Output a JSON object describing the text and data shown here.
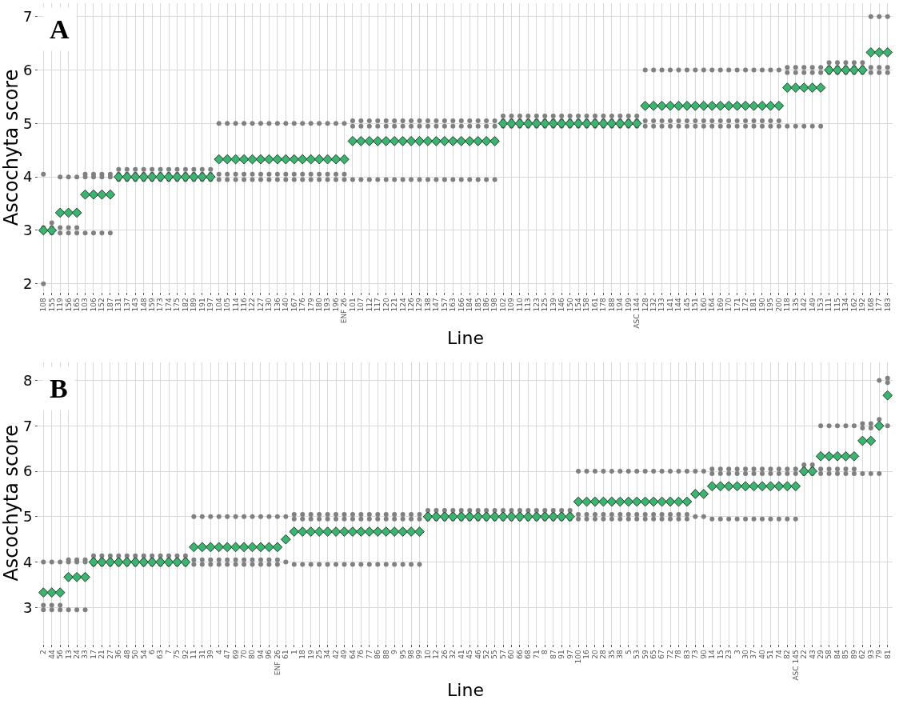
{
  "chart_data": [
    {
      "type": "scatter",
      "title": "A",
      "xlabel": "Line",
      "ylabel": "Ascochyta score",
      "grid": true,
      "ylim": [
        1.85,
        7.25
      ],
      "yticks": [
        2,
        3,
        4,
        5,
        6,
        7
      ],
      "categories": [
        "108",
        "155",
        "119",
        "156",
        "165",
        "103",
        "106",
        "152",
        "187",
        "131",
        "137",
        "143",
        "148",
        "159",
        "173",
        "174",
        "175",
        "182",
        "189",
        "191",
        "197",
        "104",
        "105",
        "114",
        "116",
        "122",
        "127",
        "130",
        "136",
        "140",
        "167",
        "176",
        "179",
        "180",
        "193",
        "196",
        "ENF 26",
        "101",
        "107",
        "112",
        "117",
        "120",
        "121",
        "124",
        "126",
        "129",
        "138",
        "147",
        "157",
        "163",
        "166",
        "184",
        "185",
        "186",
        "198",
        "102",
        "109",
        "110",
        "113",
        "123",
        "125",
        "139",
        "146",
        "150",
        "154",
        "158",
        "161",
        "178",
        "188",
        "194",
        "199",
        "ASC 144",
        "128",
        "132",
        "133",
        "141",
        "144",
        "145",
        "151",
        "160",
        "164",
        "169",
        "170",
        "171",
        "172",
        "181",
        "190",
        "195",
        "200",
        "118",
        "135",
        "142",
        "149",
        "153",
        "111",
        "115",
        "134",
        "162",
        "192",
        "168",
        "177",
        "183"
      ],
      "series": [
        {
          "color": "#808080",
          "marker": "circle",
          "values": [
            2.0,
            2.95,
            2.95,
            2.95,
            2.95,
            2.95,
            2.95,
            2.95,
            2.95,
            3.95,
            3.95,
            3.95,
            3.95,
            3.95,
            3.95,
            3.95,
            3.95,
            3.95,
            3.95,
            3.95,
            3.95,
            3.95,
            3.95,
            3.95,
            3.95,
            3.95,
            3.95,
            3.95,
            3.95,
            3.95,
            3.95,
            3.95,
            3.95,
            3.95,
            3.95,
            3.95,
            3.95,
            3.95,
            3.95,
            3.95,
            3.95,
            3.95,
            3.95,
            3.95,
            3.95,
            3.95,
            3.95,
            3.95,
            3.95,
            3.95,
            3.95,
            3.95,
            3.95,
            3.95,
            3.95,
            4.95,
            4.95,
            4.95,
            4.95,
            4.95,
            4.95,
            4.95,
            4.95,
            4.95,
            4.95,
            4.95,
            4.95,
            4.95,
            4.95,
            4.95,
            4.95,
            4.95,
            4.95,
            4.95,
            4.95,
            4.95,
            4.95,
            4.95,
            4.95,
            4.95,
            4.95,
            4.95,
            4.95,
            4.95,
            4.95,
            4.95,
            4.95,
            4.95,
            4.95,
            4.95,
            4.95,
            4.95,
            4.95,
            4.95,
            5.95,
            5.95,
            5.95,
            5.95,
            5.95,
            5.95,
            5.95,
            5.95
          ]
        },
        {
          "color": "#808080",
          "marker": "circle",
          "values": [
            3.05,
            3.14,
            3.05,
            3.05,
            3.05,
            4.0,
            4.0,
            4.0,
            4.0,
            4.14,
            4.14,
            4.14,
            4.14,
            4.14,
            4.14,
            4.14,
            4.14,
            4.14,
            4.14,
            4.14,
            4.14,
            4.05,
            4.05,
            4.05,
            4.05,
            4.05,
            4.05,
            4.05,
            4.05,
            4.05,
            4.05,
            4.05,
            4.05,
            4.05,
            4.05,
            4.05,
            4.05,
            4.95,
            4.95,
            4.95,
            4.95,
            4.95,
            4.95,
            4.95,
            4.95,
            4.95,
            4.95,
            4.95,
            4.95,
            4.95,
            4.95,
            4.95,
            4.95,
            4.95,
            4.95,
            5.14,
            5.14,
            5.14,
            5.14,
            5.14,
            5.14,
            5.14,
            5.14,
            5.14,
            5.14,
            5.14,
            5.14,
            5.14,
            5.14,
            5.14,
            5.14,
            5.14,
            5.05,
            5.05,
            5.05,
            5.05,
            5.05,
            5.05,
            5.05,
            5.05,
            5.05,
            5.05,
            5.05,
            5.05,
            5.05,
            5.05,
            5.05,
            5.05,
            5.05,
            5.95,
            5.95,
            5.95,
            5.95,
            5.95,
            6.14,
            6.14,
            6.14,
            6.14,
            6.14,
            6.05,
            6.05,
            6.05
          ]
        },
        {
          "color": "#808080",
          "marker": "circle",
          "values": [
            4.05,
            3.05,
            4.0,
            4.0,
            4.0,
            4.05,
            4.05,
            4.05,
            4.05,
            4.05,
            4.05,
            4.05,
            4.05,
            4.05,
            4.05,
            4.05,
            4.05,
            4.05,
            4.05,
            4.05,
            4.05,
            5.0,
            5.0,
            5.0,
            5.0,
            5.0,
            5.0,
            5.0,
            5.0,
            5.0,
            5.0,
            5.0,
            5.0,
            5.0,
            5.0,
            5.0,
            5.0,
            5.05,
            5.05,
            5.05,
            5.05,
            5.05,
            5.05,
            5.05,
            5.05,
            5.05,
            5.05,
            5.05,
            5.05,
            5.05,
            5.05,
            5.05,
            5.05,
            5.05,
            5.05,
            5.05,
            5.05,
            5.05,
            5.05,
            5.05,
            5.05,
            5.05,
            5.05,
            5.05,
            5.05,
            5.05,
            5.05,
            5.05,
            5.05,
            5.05,
            5.05,
            5.05,
            6.0,
            6.0,
            6.0,
            6.0,
            6.0,
            6.0,
            6.0,
            6.0,
            6.0,
            6.0,
            6.0,
            6.0,
            6.0,
            6.0,
            6.0,
            6.0,
            6.0,
            6.05,
            6.05,
            6.05,
            6.05,
            6.05,
            6.05,
            6.05,
            6.05,
            6.05,
            6.05,
            7.0,
            7.0,
            7.0
          ]
        },
        {
          "color": "#3cb371",
          "marker": "diamond",
          "values": [
            3.0,
            3.0,
            3.33,
            3.33,
            3.33,
            3.67,
            3.67,
            3.67,
            3.67,
            4.0,
            4.0,
            4.0,
            4.0,
            4.0,
            4.0,
            4.0,
            4.0,
            4.0,
            4.0,
            4.0,
            4.0,
            4.33,
            4.33,
            4.33,
            4.33,
            4.33,
            4.33,
            4.33,
            4.33,
            4.33,
            4.33,
            4.33,
            4.33,
            4.33,
            4.33,
            4.33,
            4.33,
            4.67,
            4.67,
            4.67,
            4.67,
            4.67,
            4.67,
            4.67,
            4.67,
            4.67,
            4.67,
            4.67,
            4.67,
            4.67,
            4.67,
            4.67,
            4.67,
            4.67,
            4.67,
            5.0,
            5.0,
            5.0,
            5.0,
            5.0,
            5.0,
            5.0,
            5.0,
            5.0,
            5.0,
            5.0,
            5.0,
            5.0,
            5.0,
            5.0,
            5.0,
            5.0,
            5.33,
            5.33,
            5.33,
            5.33,
            5.33,
            5.33,
            5.33,
            5.33,
            5.33,
            5.33,
            5.33,
            5.33,
            5.33,
            5.33,
            5.33,
            5.33,
            5.33,
            5.67,
            5.67,
            5.67,
            5.67,
            5.67,
            6.0,
            6.0,
            6.0,
            6.0,
            6.0,
            6.33,
            6.33,
            6.33
          ]
        }
      ]
    },
    {
      "type": "scatter",
      "title": "B",
      "xlabel": "Line",
      "ylabel": "Ascochyta score",
      "grid": true,
      "ylim": [
        2.2,
        8.4
      ],
      "yticks": [
        3,
        4,
        5,
        6,
        7,
        8
      ],
      "categories": [
        "2",
        "44",
        "56",
        "13",
        "24",
        "33",
        "17",
        "21",
        "27",
        "36",
        "48",
        "50",
        "54",
        "6",
        "63",
        "7",
        "75",
        "92",
        "11",
        "31",
        "39",
        "4",
        "47",
        "69",
        "70",
        "80",
        "94",
        "96",
        "ENF 26",
        "61",
        "1",
        "18",
        "19",
        "25",
        "34",
        "42",
        "49",
        "64",
        "76",
        "77",
        "86",
        "88",
        "9",
        "95",
        "98",
        "99",
        "10",
        "12",
        "26",
        "32",
        "41",
        "45",
        "46",
        "52",
        "55",
        "57",
        "60",
        "66",
        "68",
        "71",
        "8",
        "87",
        "91",
        "97",
        "100",
        "16",
        "20",
        "28",
        "35",
        "38",
        "5",
        "53",
        "59",
        "65",
        "67",
        "72",
        "78",
        "83",
        "73",
        "90",
        "14",
        "15",
        "23",
        "3",
        "30",
        "37",
        "40",
        "51",
        "74",
        "82",
        "ASC 145",
        "22",
        "43",
        "29",
        "58",
        "84",
        "85",
        "89",
        "62",
        "93",
        "79",
        "81"
      ],
      "series": [
        {
          "color": "#808080",
          "marker": "circle",
          "values": [
            2.95,
            2.95,
            2.95,
            2.95,
            2.95,
            2.95,
            3.95,
            3.95,
            3.95,
            3.95,
            3.95,
            3.95,
            3.95,
            3.95,
            3.95,
            3.95,
            3.95,
            3.95,
            3.95,
            3.95,
            3.95,
            3.95,
            3.95,
            3.95,
            3.95,
            3.95,
            3.95,
            3.95,
            3.95,
            4.0,
            3.95,
            3.95,
            3.95,
            3.95,
            3.95,
            3.95,
            3.95,
            3.95,
            3.95,
            3.95,
            3.95,
            3.95,
            3.95,
            3.95,
            3.95,
            3.95,
            4.95,
            4.95,
            4.95,
            4.95,
            4.95,
            4.95,
            4.95,
            4.95,
            4.95,
            4.95,
            4.95,
            4.95,
            4.95,
            4.95,
            4.95,
            4.95,
            4.95,
            4.95,
            4.95,
            4.95,
            4.95,
            4.95,
            4.95,
            4.95,
            4.95,
            4.95,
            4.95,
            4.95,
            4.95,
            4.95,
            4.95,
            4.95,
            5.0,
            5.0,
            4.95,
            4.95,
            4.95,
            4.95,
            4.95,
            4.95,
            4.95,
            4.95,
            4.95,
            4.95,
            4.95,
            5.95,
            5.95,
            5.95,
            5.95,
            5.95,
            5.95,
            5.95,
            5.95,
            5.95,
            5.95,
            7.0
          ]
        },
        {
          "color": "#808080",
          "marker": "circle",
          "values": [
            3.05,
            3.05,
            3.05,
            4.0,
            4.0,
            4.0,
            4.14,
            4.14,
            4.14,
            4.14,
            4.14,
            4.14,
            4.14,
            4.14,
            4.14,
            4.14,
            4.14,
            4.14,
            4.05,
            4.05,
            4.05,
            4.05,
            4.05,
            4.05,
            4.05,
            4.05,
            4.05,
            4.05,
            4.05,
            5.0,
            4.95,
            4.95,
            4.95,
            4.95,
            4.95,
            4.95,
            4.95,
            4.95,
            4.95,
            4.95,
            4.95,
            4.95,
            4.95,
            4.95,
            4.95,
            4.95,
            5.14,
            5.14,
            5.14,
            5.14,
            5.14,
            5.14,
            5.14,
            5.14,
            5.14,
            5.14,
            5.14,
            5.14,
            5.14,
            5.14,
            5.14,
            5.14,
            5.14,
            5.14,
            5.05,
            5.05,
            5.05,
            5.05,
            5.05,
            5.05,
            5.05,
            5.05,
            5.05,
            5.05,
            5.05,
            5.05,
            5.05,
            5.05,
            6.0,
            6.0,
            5.95,
            5.95,
            5.95,
            5.95,
            5.95,
            5.95,
            5.95,
            5.95,
            5.95,
            5.95,
            5.95,
            6.14,
            6.14,
            6.05,
            6.05,
            6.05,
            6.05,
            6.05,
            6.95,
            6.95,
            7.14,
            7.95
          ]
        },
        {
          "color": "#808080",
          "marker": "circle",
          "values": [
            4.0,
            4.0,
            4.0,
            4.05,
            4.05,
            4.05,
            4.05,
            4.05,
            4.05,
            4.05,
            4.05,
            4.05,
            4.05,
            4.05,
            4.05,
            4.05,
            4.05,
            4.05,
            5.0,
            5.0,
            5.0,
            5.0,
            5.0,
            5.0,
            5.0,
            5.0,
            5.0,
            5.0,
            5.0,
            null,
            5.05,
            5.05,
            5.05,
            5.05,
            5.05,
            5.05,
            5.05,
            5.05,
            5.05,
            5.05,
            5.05,
            5.05,
            5.05,
            5.05,
            5.05,
            5.05,
            5.05,
            5.05,
            5.05,
            5.05,
            5.05,
            5.05,
            5.05,
            5.05,
            5.05,
            5.05,
            5.05,
            5.05,
            5.05,
            5.05,
            5.05,
            5.05,
            5.05,
            5.05,
            6.0,
            6.0,
            6.0,
            6.0,
            6.0,
            6.0,
            6.0,
            6.0,
            6.0,
            6.0,
            6.0,
            6.0,
            6.0,
            6.0,
            null,
            null,
            6.05,
            6.05,
            6.05,
            6.05,
            6.05,
            6.05,
            6.05,
            6.05,
            6.05,
            6.05,
            6.05,
            6.05,
            6.05,
            7.0,
            7.0,
            7.0,
            7.0,
            7.0,
            7.05,
            7.05,
            8.0,
            8.05
          ]
        },
        {
          "color": "#3cb371",
          "marker": "diamond",
          "values": [
            3.33,
            3.33,
            3.33,
            3.67,
            3.67,
            3.67,
            4.0,
            4.0,
            4.0,
            4.0,
            4.0,
            4.0,
            4.0,
            4.0,
            4.0,
            4.0,
            4.0,
            4.0,
            4.33,
            4.33,
            4.33,
            4.33,
            4.33,
            4.33,
            4.33,
            4.33,
            4.33,
            4.33,
            4.33,
            4.5,
            4.67,
            4.67,
            4.67,
            4.67,
            4.67,
            4.67,
            4.67,
            4.67,
            4.67,
            4.67,
            4.67,
            4.67,
            4.67,
            4.67,
            4.67,
            4.67,
            5.0,
            5.0,
            5.0,
            5.0,
            5.0,
            5.0,
            5.0,
            5.0,
            5.0,
            5.0,
            5.0,
            5.0,
            5.0,
            5.0,
            5.0,
            5.0,
            5.0,
            5.0,
            5.33,
            5.33,
            5.33,
            5.33,
            5.33,
            5.33,
            5.33,
            5.33,
            5.33,
            5.33,
            5.33,
            5.33,
            5.33,
            5.33,
            5.5,
            5.5,
            5.67,
            5.67,
            5.67,
            5.67,
            5.67,
            5.67,
            5.67,
            5.67,
            5.67,
            5.67,
            5.67,
            6.0,
            6.0,
            6.33,
            6.33,
            6.33,
            6.33,
            6.33,
            6.67,
            6.67,
            7.0,
            7.67
          ]
        }
      ]
    }
  ]
}
